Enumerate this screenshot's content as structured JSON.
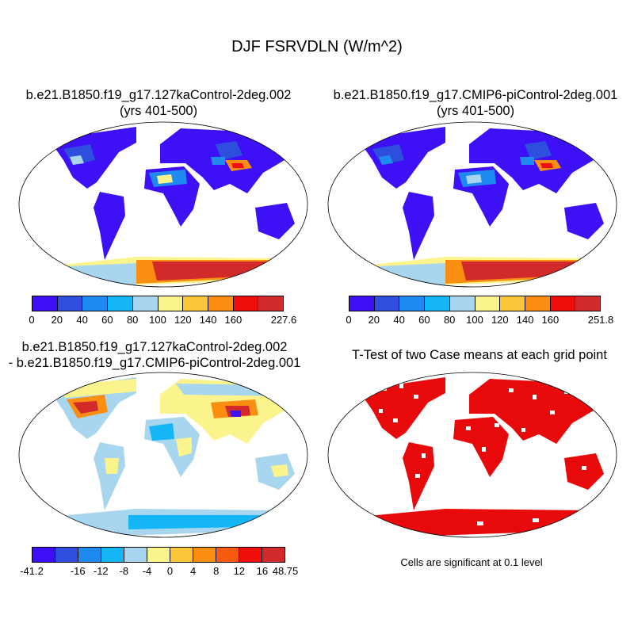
{
  "title": "DJF FSRVDLN (W/m^2)",
  "panels": [
    {
      "line1": "b.e21.B1850.f19_g17.127kaControl-2deg.002",
      "line2": "(yrs 401-500)"
    },
    {
      "line1": "b.e21.B1850.f19_g17.CMIP6-piControl-2deg.001",
      "line2": "(yrs 401-500)"
    },
    {
      "line1": "b.e21.B1850.f19_g17.127kaControl-2deg.002",
      "line2": "- b.e21.B1850.f19_g17.CMIP6-piControl-2deg.001"
    },
    {
      "line1": "T-Test of two Case means at each grid point",
      "line2": ""
    }
  ],
  "significance_note": "Cells are significant at 0.1 level",
  "colorbars": {
    "abs_colors": [
      "#3d10f5",
      "#2e4fde",
      "#1f8af0",
      "#14b6f5",
      "#a9d6ef",
      "#fbf38b",
      "#fbc63a",
      "#f98e10",
      "#f00e0a",
      "#d22a2a"
    ],
    "diff_colors": [
      "#3d10f5",
      "#2e4fde",
      "#1f8af0",
      "#14b6f5",
      "#a9d6ef",
      "#fbf38b",
      "#fbc63a",
      "#f98e10",
      "#f85a10",
      "#f00e0a",
      "#d22a2a"
    ],
    "case1_labels": [
      "0",
      "20",
      "40",
      "60",
      "80",
      "100",
      "120",
      "140",
      "160",
      "227.6"
    ],
    "case2_labels": [
      "0",
      "20",
      "40",
      "60",
      "80",
      "100",
      "120",
      "140",
      "160",
      "251.8"
    ],
    "diff_labels": [
      "-41.2",
      "-16",
      "-12",
      "-8",
      "-4",
      "0",
      "4",
      "8",
      "12",
      "16",
      "48.75"
    ]
  },
  "significance_color": "#e8090b"
}
